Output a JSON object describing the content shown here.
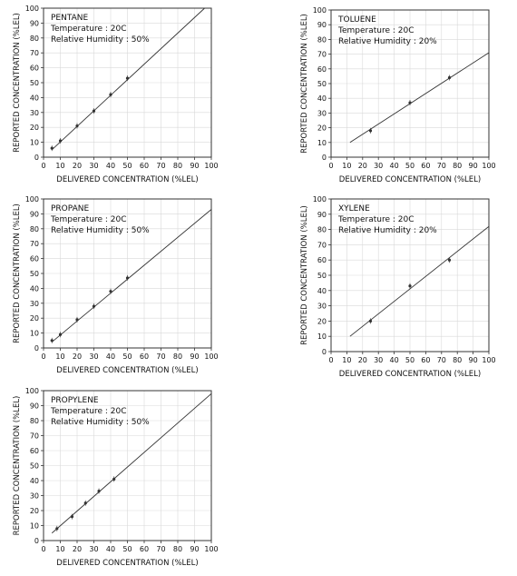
{
  "chart_data": [
    {
      "type": "scatter",
      "title": "PENTANE",
      "annotations": [
        "Temperature : 20C",
        "Relative Humidity : 50%"
      ],
      "xlabel": "DELIVERED CONCENTRATION (%LEL)",
      "ylabel": "REPORTED CONCENTRATION (%LEL)",
      "xlim": [
        0,
        100
      ],
      "ylim": [
        0,
        100
      ],
      "xticks": [
        0,
        10,
        20,
        30,
        40,
        50,
        60,
        70,
        80,
        90,
        100
      ],
      "yticks": [
        0,
        10,
        20,
        30,
        40,
        50,
        60,
        70,
        80,
        90,
        100
      ],
      "grid": true,
      "series": [
        {
          "type": "scatter",
          "x": [
            5,
            10,
            20,
            30,
            40,
            50
          ],
          "y": [
            6,
            11,
            21,
            31,
            42,
            53
          ]
        },
        {
          "type": "line",
          "x": [
            5,
            96
          ],
          "y": [
            5,
            100
          ]
        }
      ]
    },
    {
      "type": "scatter",
      "title": "TOLUENE",
      "annotations": [
        "Temperature : 20C",
        "Relative Humidity : 20%"
      ],
      "xlabel": "DELIVERED CONCENTRATION (%LEL)",
      "ylabel": "REPORTED CONCENTRATION (%LEL)",
      "xlim": [
        0,
        100
      ],
      "ylim": [
        0,
        100
      ],
      "xticks": [
        0,
        10,
        20,
        30,
        40,
        50,
        60,
        70,
        80,
        90,
        100
      ],
      "yticks": [
        0,
        10,
        20,
        30,
        40,
        50,
        60,
        70,
        80,
        90,
        100
      ],
      "grid": true,
      "series": [
        {
          "type": "scatter",
          "x": [
            25,
            50,
            75
          ],
          "y": [
            18,
            37,
            54
          ]
        },
        {
          "type": "line",
          "x": [
            12,
            100
          ],
          "y": [
            10,
            71
          ]
        }
      ]
    },
    {
      "type": "scatter",
      "title": "PROPANE",
      "annotations": [
        "Temperature : 20C",
        "Relative Humidity : 50%"
      ],
      "xlabel": "DELIVERED CONCENTRATION (%LEL)",
      "ylabel": "REPORTED CONCENTRATION (%LEL)",
      "xlim": [
        0,
        100
      ],
      "ylim": [
        0,
        100
      ],
      "xticks": [
        0,
        10,
        20,
        30,
        40,
        50,
        60,
        70,
        80,
        90,
        100
      ],
      "yticks": [
        0,
        10,
        20,
        30,
        40,
        50,
        60,
        70,
        80,
        90,
        100
      ],
      "grid": true,
      "series": [
        {
          "type": "scatter",
          "x": [
            5,
            10,
            20,
            30,
            40,
            50
          ],
          "y": [
            5,
            9,
            19,
            28,
            38,
            47
          ]
        },
        {
          "type": "line",
          "x": [
            5,
            100
          ],
          "y": [
            4,
            93
          ]
        }
      ]
    },
    {
      "type": "scatter",
      "title": "XYLENE",
      "annotations": [
        "Temperature : 20C",
        "Relative Humidity : 20%"
      ],
      "xlabel": "DELIVERED CONCENTRATION (%LEL)",
      "ylabel": "REPORTED CONCENTRATION (%LEL)",
      "xlim": [
        0,
        100
      ],
      "ylim": [
        0,
        100
      ],
      "xticks": [
        0,
        10,
        20,
        30,
        40,
        50,
        60,
        70,
        80,
        90,
        100
      ],
      "yticks": [
        0,
        10,
        20,
        30,
        40,
        50,
        60,
        70,
        80,
        90,
        100
      ],
      "grid": true,
      "series": [
        {
          "type": "scatter",
          "x": [
            25,
            50,
            75
          ],
          "y": [
            20,
            43,
            60
          ]
        },
        {
          "type": "line",
          "x": [
            12,
            100
          ],
          "y": [
            10,
            82
          ]
        }
      ]
    },
    {
      "type": "scatter",
      "title": "PROPYLENE",
      "annotations": [
        "Temperature : 20C",
        "Relative Humidity : 50%"
      ],
      "xlabel": "DELIVERED CONCENTRATION (%LEL)",
      "ylabel": "REPORTED CONCENTRATION (%LEL)",
      "xlim": [
        0,
        100
      ],
      "ylim": [
        0,
        100
      ],
      "xticks": [
        0,
        10,
        20,
        30,
        40,
        50,
        60,
        70,
        80,
        90,
        100
      ],
      "yticks": [
        0,
        10,
        20,
        30,
        40,
        50,
        60,
        70,
        80,
        90,
        100
      ],
      "grid": true,
      "series": [
        {
          "type": "scatter",
          "x": [
            8,
            17,
            25,
            33,
            42
          ],
          "y": [
            8,
            16,
            25,
            33,
            41
          ]
        },
        {
          "type": "line",
          "x": [
            5,
            100
          ],
          "y": [
            5,
            98
          ]
        }
      ]
    }
  ]
}
